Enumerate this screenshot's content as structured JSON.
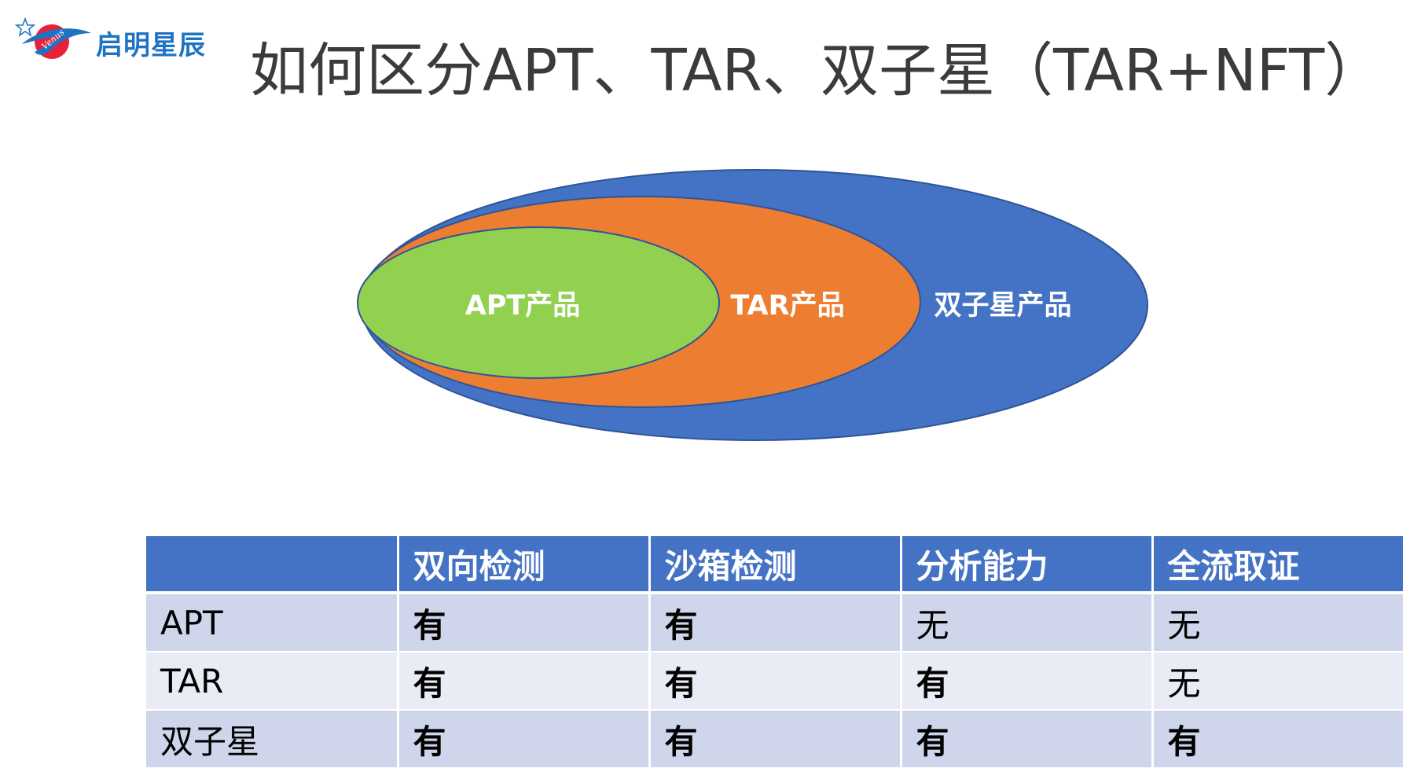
{
  "logo": {
    "mark_text": "Venus",
    "brand_text": "启明星辰",
    "brand_color": "#1f73c4",
    "accent_color": "#e8213a"
  },
  "title": "如何区分APT、TAR、双子星（TAR+NFT）",
  "diagram": {
    "outer_label": "双子星产品",
    "middle_label": "TAR产品",
    "inner_label": "APT产品",
    "outer_color": "#4472c4",
    "middle_color": "#ed7d31",
    "inner_color": "#92d050"
  },
  "table": {
    "headers": [
      "",
      "双向检测",
      "沙箱检测",
      "分析能力",
      "全流取证"
    ],
    "rows": [
      {
        "label": "APT",
        "cells": [
          "有",
          "有",
          "无",
          "无"
        ]
      },
      {
        "label": "TAR",
        "cells": [
          "有",
          "有",
          "有",
          "无"
        ]
      },
      {
        "label": "双子星",
        "cells": [
          "有",
          "有",
          "有",
          "有"
        ]
      }
    ],
    "header_color": "#4472c4",
    "row_color_odd": "#cfd5ea",
    "row_color_even": "#e9ebf5"
  }
}
